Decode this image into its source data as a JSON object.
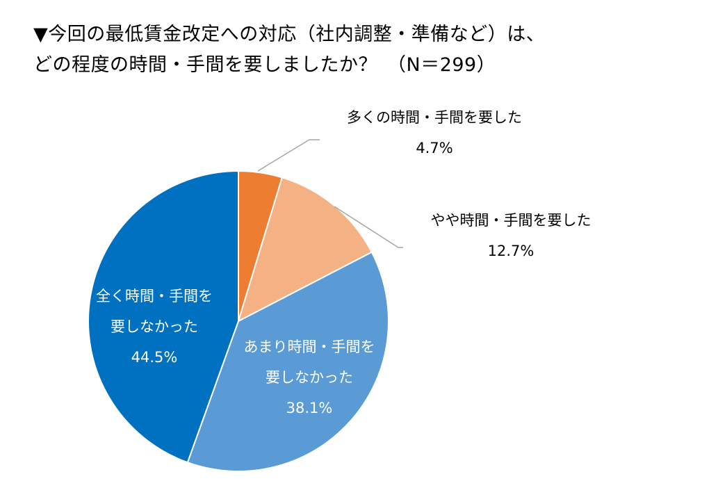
{
  "chart_data": {
    "type": "pie",
    "title_line1": "▼今回の最低賃金改定への対応（社内調整・準備など）は、",
    "title_line2": "どの程度の時間・手間を要しましたか？　（N＝299）",
    "slices": [
      {
        "label": "多くの時間・手間を要した",
        "label_lines": [
          "多くの時間・手間を要した"
        ],
        "value": 4.7,
        "value_label": "4.7%",
        "color": "#ED7D31",
        "label_color": "#000000"
      },
      {
        "label": "やや時間・手間を要した",
        "label_lines": [
          "やや時間・手間を要した"
        ],
        "value": 12.7,
        "value_label": "12.7%",
        "color": "#F4B183",
        "label_color": "#000000"
      },
      {
        "label": "あまり時間・手間を要しなかった",
        "label_lines": [
          "あまり時間・手間を",
          "要しなかった"
        ],
        "value": 38.1,
        "value_label": "38.1%",
        "color": "#5B9BD5",
        "label_color": "#ffffff"
      },
      {
        "label": "全く時間・手間を要しなかった",
        "label_lines": [
          "全く時間・手間を",
          "要しなかった"
        ],
        "value": 44.5,
        "value_label": "44.5%",
        "color": "#0070C0",
        "label_color": "#ffffff"
      }
    ],
    "legend": "none"
  }
}
